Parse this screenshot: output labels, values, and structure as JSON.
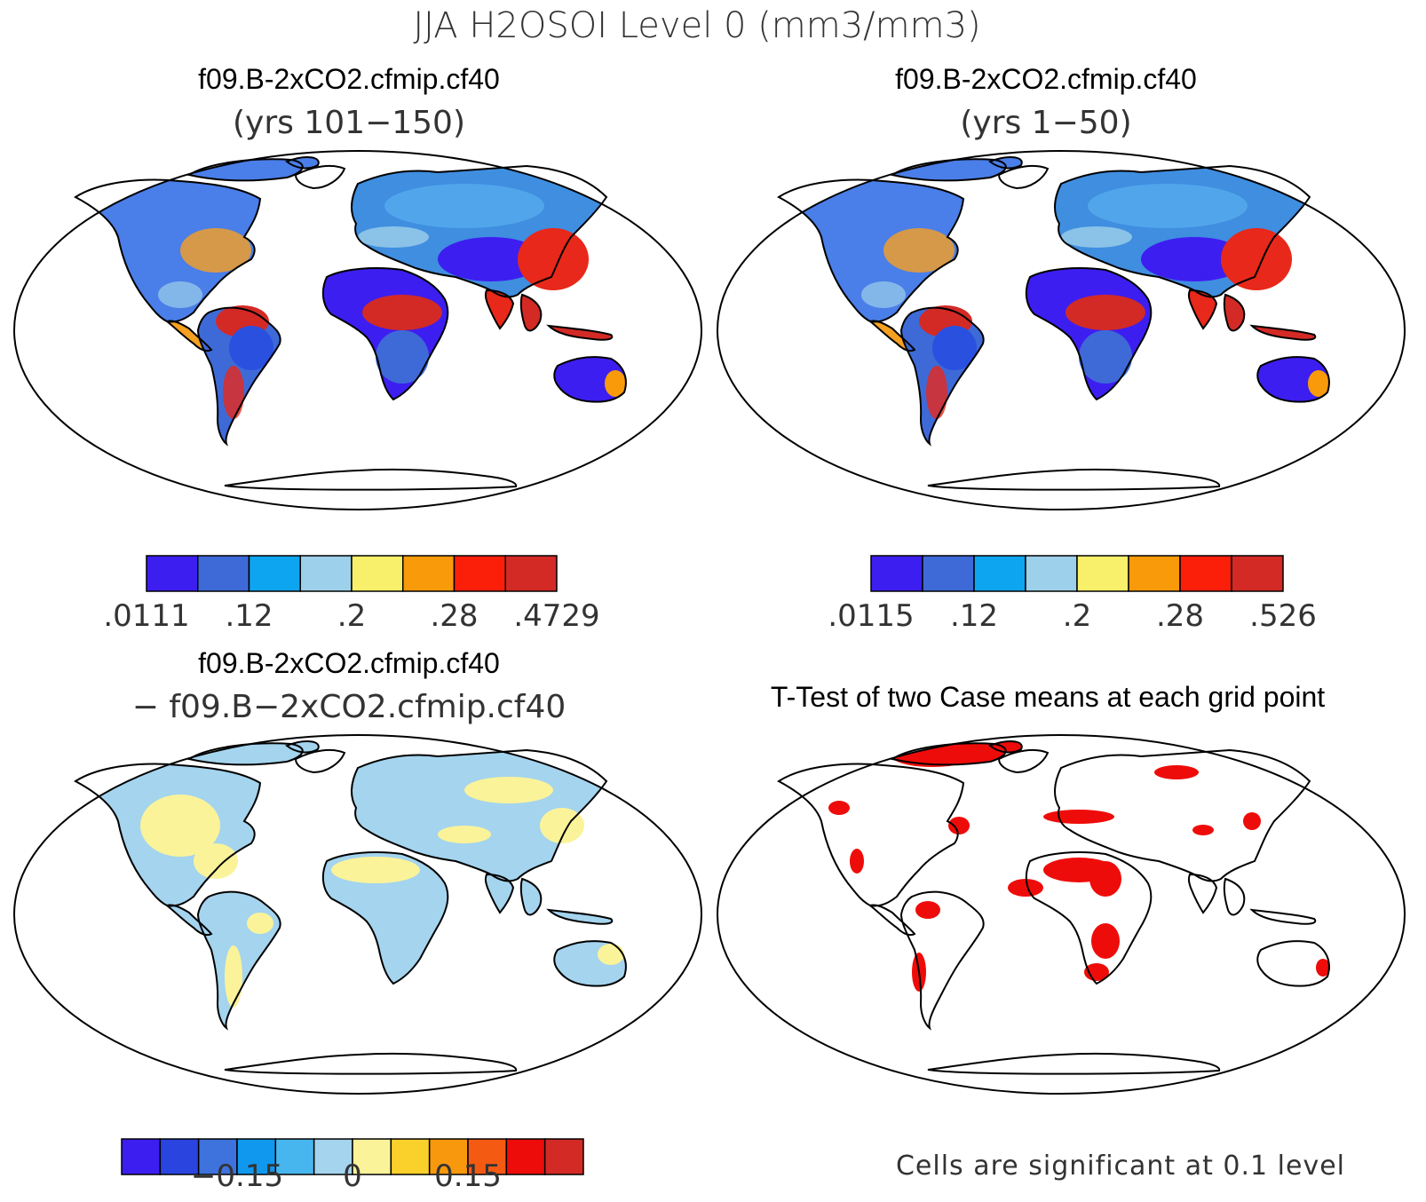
{
  "main_title": "JJA H2OSOI Level 0 (mm3/mm3)",
  "panels": [
    {
      "id": "top-left",
      "title_line1": "f09.B-2xCO2.cfmip.cf40",
      "title_line2": "(yrs 101−150)",
      "colorbar": {
        "colors": [
          "#3d1ef0",
          "#3e6ad8",
          "#0ea5f0",
          "#9dd0ea",
          "#f8ef6a",
          "#f89a0a",
          "#fb1f0a",
          "#d32a26"
        ],
        "labels": [
          ".0111",
          ".12",
          ".2",
          ".28",
          ".4729"
        ],
        "label_boundaries": [
          0,
          2,
          4,
          6,
          8
        ]
      }
    },
    {
      "id": "top-right",
      "title_line1": "f09.B-2xCO2.cfmip.cf40",
      "title_line2": "(yrs 1−50)",
      "colorbar": {
        "colors": [
          "#3d1ef0",
          "#3e6ad8",
          "#0ea5f0",
          "#9dd0ea",
          "#f8ef6a",
          "#f89a0a",
          "#fb1f0a",
          "#d32a26"
        ],
        "labels": [
          ".0115",
          ".12",
          ".2",
          ".28",
          ".526"
        ],
        "label_boundaries": [
          0,
          2,
          4,
          6,
          8
        ]
      }
    },
    {
      "id": "bottom-left",
      "title_line1": "f09.B-2xCO2.cfmip.cf40",
      "title_line2": "− f09.B−2xCO2.cfmip.cf40",
      "colorbar": {
        "colors": [
          "#3d1ef0",
          "#2a44e0",
          "#3e72dc",
          "#0f98ee",
          "#48b6ee",
          "#a4d4ee",
          "#fbf39a",
          "#fad02a",
          "#f8980c",
          "#f45a12",
          "#ee0c0a",
          "#d32a26"
        ],
        "labels": [
          "−0.15",
          "0",
          "0.15"
        ],
        "label_boundaries": [
          3,
          6,
          9
        ]
      }
    },
    {
      "id": "bottom-right",
      "title_line1": "T-Test of two Case means at each grid point",
      "note": "Cells are significant at 0.1 level"
    }
  ]
}
